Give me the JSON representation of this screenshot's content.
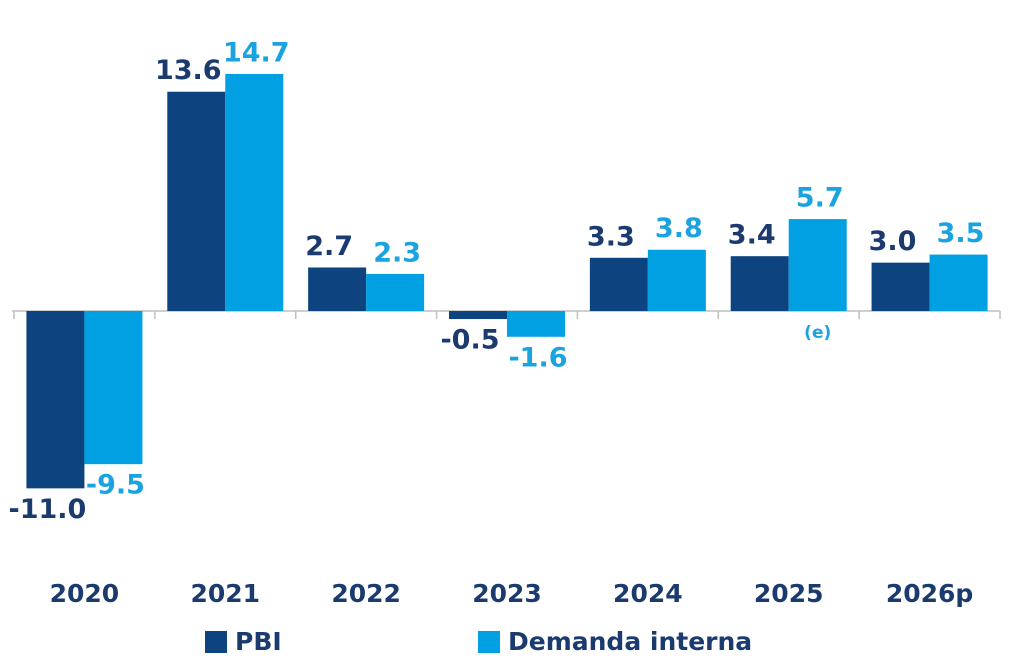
{
  "chart_data": {
    "type": "bar",
    "categories": [
      "2020",
      "2021",
      "2022",
      "2023",
      "2024",
      "2025",
      "2026p"
    ],
    "series": [
      {
        "name": "PBI",
        "color": "#0d4480",
        "label_color": "#1b3b6f",
        "values": [
          -11.0,
          13.6,
          2.7,
          -0.5,
          3.3,
          3.4,
          3.0
        ],
        "value_labels": [
          "-11.0",
          "13.6",
          "2.7",
          "-0.5",
          "3.3",
          "3.4",
          "3.0"
        ]
      },
      {
        "name": "Demanda interna",
        "color": "#00a0e3",
        "label_color": "#1aa3e0",
        "values": [
          -9.5,
          14.7,
          2.3,
          -1.6,
          3.8,
          5.7,
          3.5
        ],
        "value_labels": [
          "-9.5",
          "14.7",
          "2.3",
          "-1.6",
          "3.8",
          "5.7",
          "3.5"
        ]
      }
    ],
    "annotations": [
      {
        "text": "(e)",
        "category": "2025"
      }
    ]
  }
}
